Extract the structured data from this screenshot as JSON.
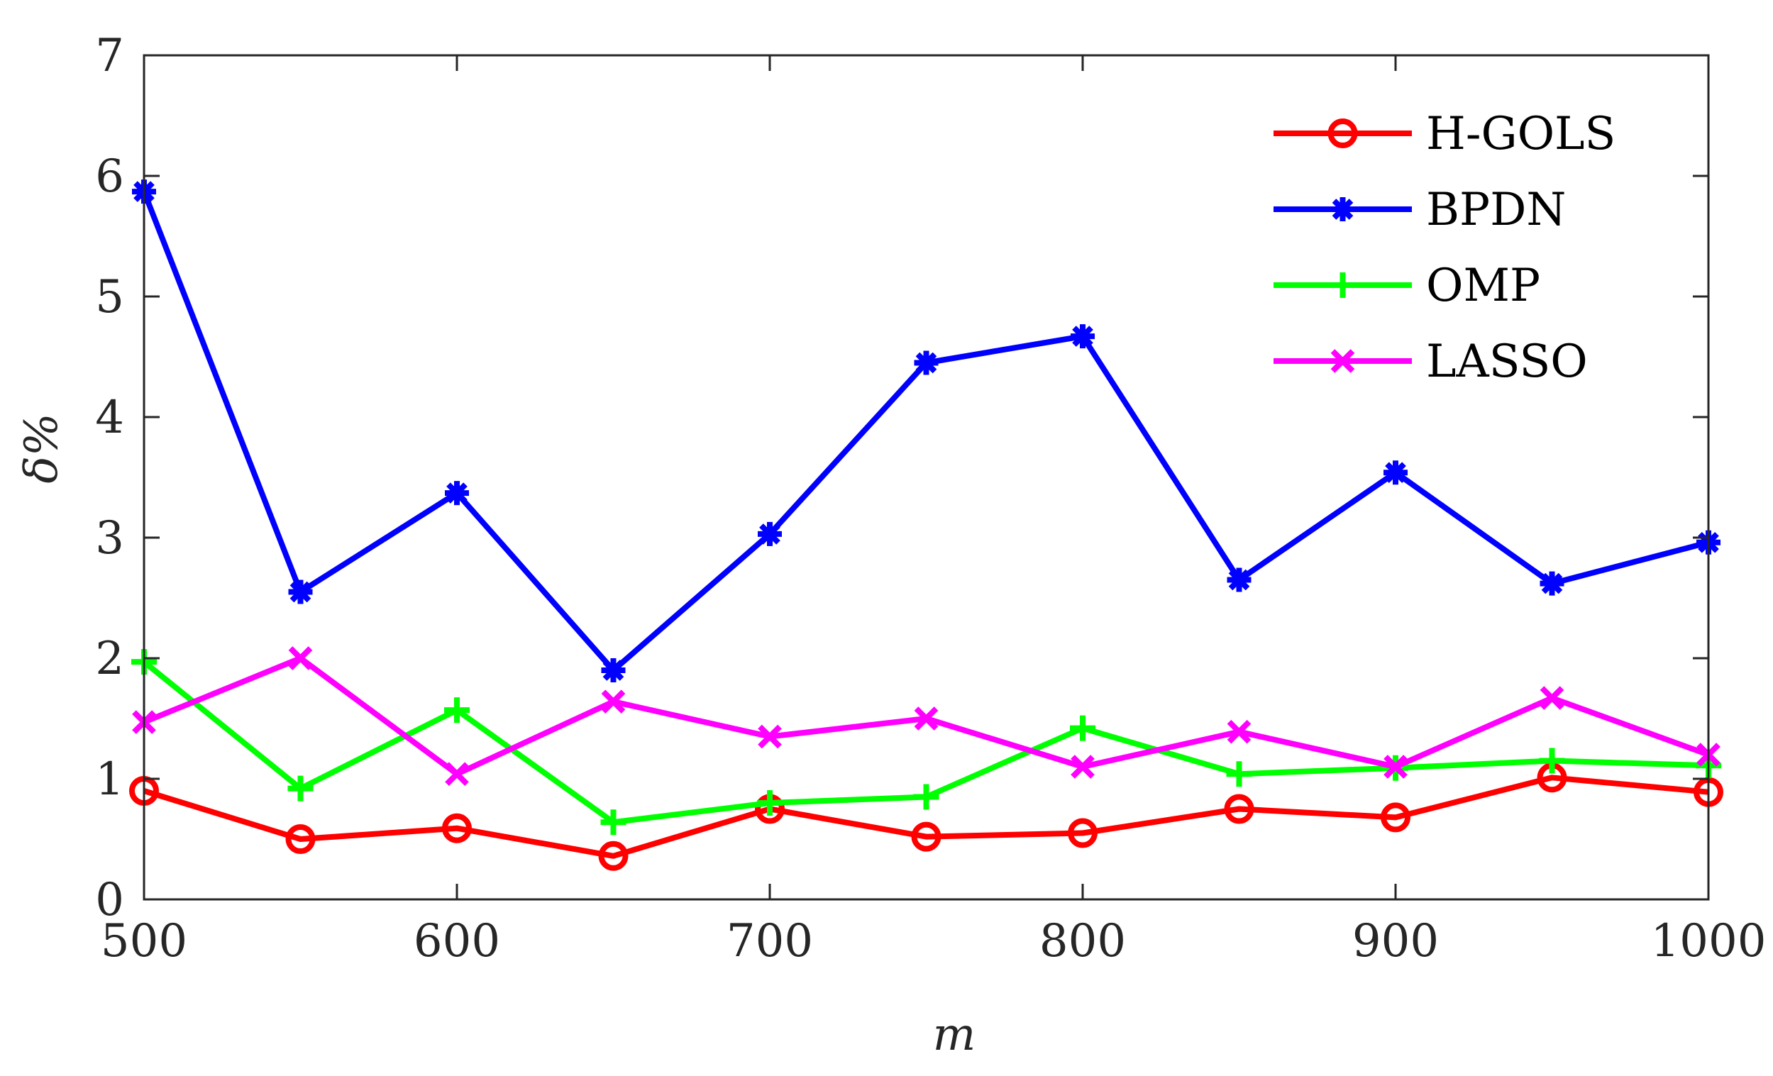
{
  "chart_data": {
    "type": "line",
    "title": "",
    "xlabel": "m",
    "ylabel": "δ%",
    "x": [
      500,
      550,
      600,
      650,
      700,
      750,
      800,
      850,
      900,
      950,
      1000
    ],
    "xlim": [
      500,
      1000
    ],
    "ylim": [
      0,
      7
    ],
    "xticks": [
      500,
      600,
      700,
      800,
      900,
      1000
    ],
    "yticks": [
      0,
      1,
      2,
      3,
      4,
      5,
      6,
      7
    ],
    "grid": false,
    "legend_position": "top-right",
    "series": [
      {
        "name": "H-GOLS",
        "color": "#ff0000",
        "marker": "circle",
        "values": [
          0.9,
          0.5,
          0.59,
          0.36,
          0.75,
          0.52,
          0.55,
          0.75,
          0.68,
          1.01,
          0.89
        ]
      },
      {
        "name": "BPDN",
        "color": "#0000ff",
        "marker": "asterisk",
        "values": [
          5.87,
          2.55,
          3.37,
          1.9,
          3.03,
          4.45,
          4.67,
          2.65,
          3.54,
          2.62,
          2.96
        ]
      },
      {
        "name": "OMP",
        "color": "#00ff00",
        "marker": "plus",
        "values": [
          1.97,
          0.92,
          1.57,
          0.64,
          0.8,
          0.85,
          1.42,
          1.04,
          1.09,
          1.15,
          1.11
        ]
      },
      {
        "name": "LASSO",
        "color": "#ff00ff",
        "marker": "x",
        "values": [
          1.47,
          2.0,
          1.04,
          1.64,
          1.35,
          1.5,
          1.1,
          1.39,
          1.1,
          1.67,
          1.2
        ]
      }
    ]
  }
}
